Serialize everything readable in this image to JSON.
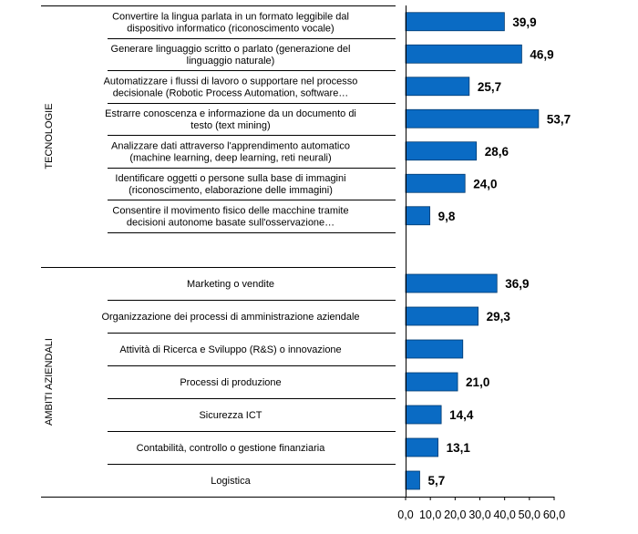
{
  "chart_data": {
    "type": "bar",
    "orientation": "horizontal",
    "x_axis": {
      "ticks": [
        0,
        10,
        20,
        30,
        40,
        50,
        60
      ],
      "tick_labels": [
        "0,0",
        "10,0",
        "20,0",
        "30,0",
        "40,0",
        "50,0",
        "60,0"
      ],
      "xlim": [
        0,
        60
      ]
    },
    "bar_color": "#0a6bc4",
    "groups": [
      {
        "name": "TECNOLOGIE",
        "items": [
          {
            "label": [
              "Convertire la lingua parlata in un formato leggibile dal",
              "dispositivo informatico (riconoscimento vocale)"
            ],
            "value": 39.9,
            "value_label": "39,9"
          },
          {
            "label": [
              "Generare linguaggio scritto o parlato (generazione del",
              "linguaggio naturale)"
            ],
            "value": 46.9,
            "value_label": "46,9"
          },
          {
            "label": [
              "Automatizzare i flussi di lavoro o supportare nel processo",
              "decisionale (Robotic Process Automation, software…"
            ],
            "value": 25.7,
            "value_label": "25,7"
          },
          {
            "label": [
              "Estrarre conoscenza e informazione da un documento di",
              "testo (text mining)"
            ],
            "value": 53.7,
            "value_label": "53,7"
          },
          {
            "label": [
              "Analizzare dati attraverso l'apprendimento automatico",
              "(machine learning, deep learning, reti neurali)"
            ],
            "value": 28.6,
            "value_label": "28,6"
          },
          {
            "label": [
              "Identificare oggetti o persone sulla base di immagini",
              "(riconoscimento, elaborazione delle immagini)"
            ],
            "value": 24.0,
            "value_label": "24,0"
          },
          {
            "label": [
              "Consentire il movimento fisico delle macchine tramite",
              "decisioni autonome basate sull'osservazione…"
            ],
            "value": 9.8,
            "value_label": "9,8"
          }
        ]
      },
      {
        "name": "AMBITI AZIENDALI",
        "items": [
          {
            "label": [
              "Marketing o vendite"
            ],
            "value": 36.9,
            "value_label": "36,9"
          },
          {
            "label": [
              "Organizzazione dei processi di amministrazione aziendale"
            ],
            "value": 29.3,
            "value_label": "29,3"
          },
          {
            "label": [
              "Attività di Ricerca e Sviluppo (R&S) o innovazione"
            ],
            "value": 23.1,
            "value_label": ""
          },
          {
            "label": [
              "Processi di produzione"
            ],
            "value": 21.0,
            "value_label": "21,0"
          },
          {
            "label": [
              "Sicurezza ICT"
            ],
            "value": 14.4,
            "value_label": "14,4"
          },
          {
            "label": [
              "Contabilità, controllo o gestione finanziaria"
            ],
            "value": 13.1,
            "value_label": "13,1"
          },
          {
            "label": [
              "Logistica"
            ],
            "value": 5.7,
            "value_label": "5,7"
          }
        ]
      }
    ]
  }
}
